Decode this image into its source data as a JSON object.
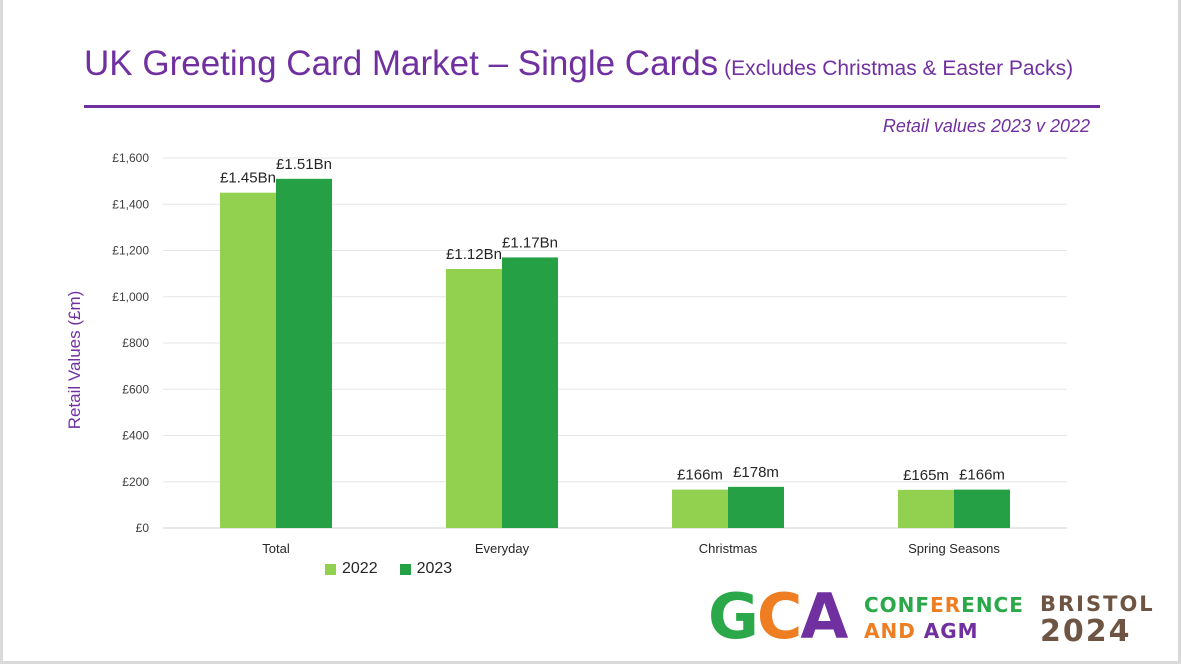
{
  "header": {
    "title": "UK Greeting Card Market – Single Cards",
    "title_note": "(Excludes Christmas & Easter Packs)",
    "subtitle": "Retail values 2023 v 2022",
    "accent_color": "#7030a0"
  },
  "chart_data": {
    "type": "bar",
    "ylabel": "Retail Values (£m)",
    "xlabel": "",
    "ylim": [
      0,
      1600
    ],
    "yticks": [
      0,
      200,
      400,
      600,
      800,
      1000,
      1200,
      1400,
      1600
    ],
    "ytick_labels": [
      "£0",
      "£200",
      "£400",
      "£600",
      "£800",
      "£1,000",
      "£1,200",
      "£1,400",
      "£1,600"
    ],
    "categories": [
      "Total",
      "Everyday",
      "Christmas",
      "Spring Seasons"
    ],
    "series": [
      {
        "name": "2022",
        "color": "#92d050",
        "values": [
          1450,
          1120,
          166,
          165
        ],
        "labels": [
          "£1.45Bn",
          "£1.12Bn",
          "£166m",
          "£165m"
        ]
      },
      {
        "name": "2023",
        "color": "#26a045",
        "values": [
          1510,
          1170,
          178,
          166
        ],
        "labels": [
          "£1.51Bn",
          "£1.17Bn",
          "£178m",
          "£166m"
        ]
      }
    ],
    "grid": true,
    "legend_position": "bottom-left"
  },
  "logo": {
    "letters": [
      {
        "char": "G",
        "color": "#2aa84a"
      },
      {
        "char": "C",
        "color": "#ef7d22"
      },
      {
        "char": "A",
        "color": "#7030a0"
      }
    ],
    "line1": [
      {
        "text": "CONF",
        "color": "#2aa84a"
      },
      {
        "text": "ER",
        "color": "#ef7d22"
      },
      {
        "text": "ENCE",
        "color": "#2aa84a"
      }
    ],
    "line2": [
      {
        "text": "AND ",
        "color": "#ef7d22"
      },
      {
        "text": "AGM",
        "color": "#7030a0"
      }
    ],
    "city": "BRISTOL",
    "year": "2024"
  }
}
